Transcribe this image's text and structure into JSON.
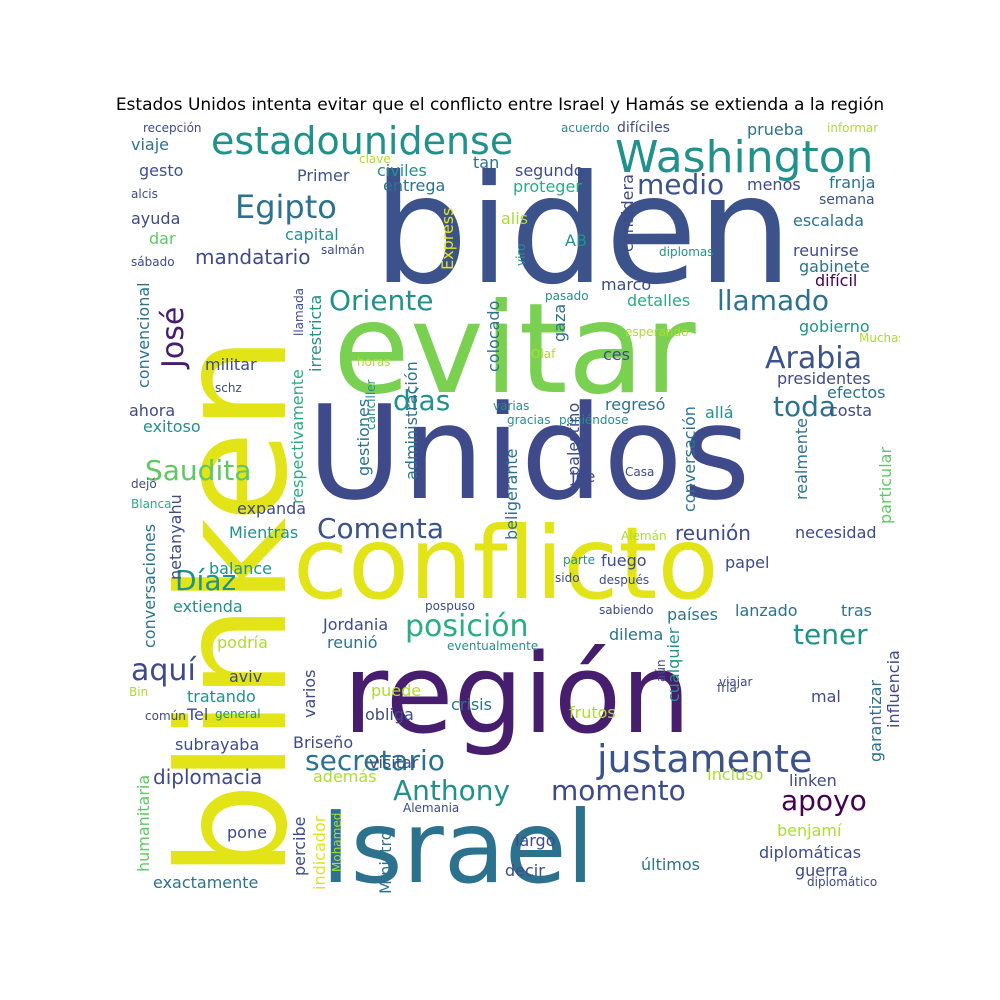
{
  "title": "Estados Unidos intenta evitar que el conflicto entre Israel y Hamás se extienda a la región",
  "palette": [
    "#440154",
    "#472d7b",
    "#3b528b",
    "#2c728e",
    "#21918c",
    "#28ae80",
    "#5ec962",
    "#addc30",
    "#e3e418"
  ],
  "words": [
    {
      "text": "biden",
      "color": "#3b528b"
    },
    {
      "text": "blinken",
      "color": "#e3e418"
    },
    {
      "text": "evitar",
      "color": "#7ad151"
    },
    {
      "text": "Unidos",
      "color": "#3e4a89"
    },
    {
      "text": "conflicto",
      "color": "#e3e418"
    },
    {
      "text": "región",
      "color": "#471d6e"
    },
    {
      "text": "Israel",
      "color": "#2c728e"
    },
    {
      "text": "Washington",
      "color": "#21918c"
    },
    {
      "text": "estadounidense",
      "color": "#21918c"
    },
    {
      "text": "justamente",
      "color": "#3b528b"
    },
    {
      "text": "Egipto",
      "color": "#2c728e"
    },
    {
      "text": "medio",
      "color": "#3b528b"
    },
    {
      "text": "llamado",
      "color": "#2c728e"
    },
    {
      "text": "Oriente",
      "color": "#21918c"
    },
    {
      "text": "José",
      "color": "#471d6e"
    },
    {
      "text": "Arabia",
      "color": "#3b528b"
    },
    {
      "text": "toda",
      "color": "#2c728e"
    },
    {
      "text": "días",
      "color": "#21918c"
    },
    {
      "text": "Saudita",
      "color": "#5ec962"
    },
    {
      "text": "Comenta",
      "color": "#3b528b"
    },
    {
      "text": "Díaz",
      "color": "#21918c"
    },
    {
      "text": "posición",
      "color": "#28ae80"
    },
    {
      "text": "tener",
      "color": "#21918c"
    },
    {
      "text": "aquí",
      "color": "#3e4a89"
    },
    {
      "text": "secretario",
      "color": "#2c728e"
    },
    {
      "text": "Anthony",
      "color": "#21918c"
    },
    {
      "text": "momento",
      "color": "#3e4a89"
    },
    {
      "text": "apoyo",
      "color": "#440154"
    },
    {
      "text": "diplomacia",
      "color": "#3e4a89"
    },
    {
      "text": "mandatario",
      "color": "#3e4a89"
    },
    {
      "text": "reunión",
      "color": "#3e4a89"
    },
    {
      "text": "prueba",
      "color": "#2c728e"
    },
    {
      "text": "recepción",
      "color": "#3e4a89"
    },
    {
      "text": "acuerdo",
      "color": "#21918c"
    },
    {
      "text": "difíciles",
      "color": "#3e4a89"
    },
    {
      "text": "informar",
      "color": "#addc30"
    },
    {
      "text": "viaje",
      "color": "#2c728e"
    },
    {
      "text": "gesto",
      "color": "#3b528b"
    },
    {
      "text": "clave",
      "color": "#addc30"
    },
    {
      "text": "tan",
      "color": "#2c728e"
    },
    {
      "text": "Primer",
      "color": "#3b528b"
    },
    {
      "text": "civiles",
      "color": "#21918c"
    },
    {
      "text": "segundo",
      "color": "#3e4a89"
    },
    {
      "text": "entrega",
      "color": "#2c728e"
    },
    {
      "text": "proteger",
      "color": "#28ae80"
    },
    {
      "text": "menos",
      "color": "#3e4a89"
    },
    {
      "text": "franja",
      "color": "#2c728e"
    },
    {
      "text": "semana",
      "color": "#3b528b"
    },
    {
      "text": "alcis",
      "color": "#3e4a89"
    },
    {
      "text": "ayuda",
      "color": "#3e4a89"
    },
    {
      "text": "capital",
      "color": "#21918c"
    },
    {
      "text": "Express",
      "color": "#e3e418"
    },
    {
      "text": "alis",
      "color": "#addc30"
    },
    {
      "text": "AB",
      "color": "#21918c"
    },
    {
      "text": "considera",
      "color": "#3e4a89"
    },
    {
      "text": "escalada",
      "color": "#2c728e"
    },
    {
      "text": "dar",
      "color": "#5ec962"
    },
    {
      "text": "salmán",
      "color": "#3e4a89"
    },
    {
      "text": "viro",
      "color": "#21918c"
    },
    {
      "text": "diplomas",
      "color": "#21918c"
    },
    {
      "text": "reunirse",
      "color": "#3e4a89"
    },
    {
      "text": "gabinete",
      "color": "#2c728e"
    },
    {
      "text": "sábado",
      "color": "#3e4a89"
    },
    {
      "text": "difícil",
      "color": "#440154"
    },
    {
      "text": "convencional",
      "color": "#2c728e"
    },
    {
      "text": "llamada",
      "color": "#3e4a89"
    },
    {
      "text": "irrestricta",
      "color": "#21918c"
    },
    {
      "text": "colocado",
      "color": "#2c728e"
    },
    {
      "text": "pasado",
      "color": "#21918c"
    },
    {
      "text": "marco",
      "color": "#3e4a89"
    },
    {
      "text": "detalles",
      "color": "#28ae80"
    },
    {
      "text": "gobierno",
      "color": "#21918c"
    },
    {
      "text": "gaza",
      "color": "#2c728e"
    },
    {
      "text": "esperando",
      "color": "#addc30"
    },
    {
      "text": "Muchas",
      "color": "#addc30"
    },
    {
      "text": "militar",
      "color": "#3e4a89"
    },
    {
      "text": "Olaf",
      "color": "#addc30"
    },
    {
      "text": "horas",
      "color": "#addc30"
    },
    {
      "text": "ces",
      "color": "#3e4a89"
    },
    {
      "text": "presidentes",
      "color": "#3e4a89"
    },
    {
      "text": "schz",
      "color": "#3e4a89"
    },
    {
      "text": "ahora",
      "color": "#3e4a89"
    },
    {
      "text": "efectos",
      "color": "#2c728e"
    },
    {
      "text": "costa",
      "color": "#3e4a89"
    },
    {
      "text": "gestiones",
      "color": "#2c728e"
    },
    {
      "text": "canciller",
      "color": "#21918c"
    },
    {
      "text": "varias",
      "color": "#21918c"
    },
    {
      "text": "gracias",
      "color": "#21918c"
    },
    {
      "text": "poniéndose",
      "color": "#21918c"
    },
    {
      "text": "regresó",
      "color": "#2c728e"
    },
    {
      "text": "allá",
      "color": "#21918c"
    },
    {
      "text": "exitoso",
      "color": "#21918c"
    },
    {
      "text": "respectivamente",
      "color": "#28ae80"
    },
    {
      "text": "administración",
      "color": "#2c728e"
    },
    {
      "text": "palestino",
      "color": "#3e4a89"
    },
    {
      "text": "conversación",
      "color": "#2c728e"
    },
    {
      "text": "realmente",
      "color": "#2c728e"
    },
    {
      "text": "particular",
      "color": "#5ec962"
    },
    {
      "text": "Joe",
      "color": "#3e4a89"
    },
    {
      "text": "Casa",
      "color": "#3e4a89"
    },
    {
      "text": "beligerante",
      "color": "#2c728e"
    },
    {
      "text": "dejó",
      "color": "#3e4a89"
    },
    {
      "text": "Blanca",
      "color": "#28ae80"
    },
    {
      "text": "expanda",
      "color": "#3e4a89"
    },
    {
      "text": "netanyahu",
      "color": "#3e4a89"
    },
    {
      "text": "conversaciones",
      "color": "#2c728e"
    },
    {
      "text": "Mientras",
      "color": "#21918c"
    },
    {
      "text": "Alemán",
      "color": "#addc30"
    },
    {
      "text": "necesidad",
      "color": "#3e4a89"
    },
    {
      "text": "balance",
      "color": "#21918c"
    },
    {
      "text": "fuego",
      "color": "#3e4a89"
    },
    {
      "text": "parte",
      "color": "#21918c"
    },
    {
      "text": "papel",
      "color": "#3e4a89"
    },
    {
      "text": "sido",
      "color": "#3e4a89"
    },
    {
      "text": "después",
      "color": "#3e4a89"
    },
    {
      "text": "extienda",
      "color": "#21918c"
    },
    {
      "text": "pospuso",
      "color": "#3e4a89"
    },
    {
      "text": "sabiendo",
      "color": "#3e4a89"
    },
    {
      "text": "países",
      "color": "#2c728e"
    },
    {
      "text": "lanzado",
      "color": "#2c728e"
    },
    {
      "text": "tras",
      "color": "#2c728e"
    },
    {
      "text": "Jordania",
      "color": "#3e4a89"
    },
    {
      "text": "dilema",
      "color": "#2c728e"
    },
    {
      "text": "podría",
      "color": "#addc30"
    },
    {
      "text": "reunió",
      "color": "#2c728e"
    },
    {
      "text": "eventualmente",
      "color": "#21918c"
    },
    {
      "text": "cualquier",
      "color": "#21918c"
    },
    {
      "text": "influencia",
      "color": "#3e4a89"
    },
    {
      "text": "aviv",
      "color": "#3e4a89"
    },
    {
      "text": "varios",
      "color": "#3e4a89"
    },
    {
      "text": "aún",
      "color": "#3e4a89"
    },
    {
      "text": "Bin",
      "color": "#addc30"
    },
    {
      "text": "tratando",
      "color": "#21918c"
    },
    {
      "text": "puede",
      "color": "#addc30"
    },
    {
      "text": "viajar",
      "color": "#3e4a89"
    },
    {
      "text": "fría",
      "color": "#3e4a89"
    },
    {
      "text": "garantizar",
      "color": "#2c728e"
    },
    {
      "text": "crisis",
      "color": "#2c728e"
    },
    {
      "text": "mal",
      "color": "#3e4a89"
    },
    {
      "text": "común",
      "color": "#3e4a89"
    },
    {
      "text": "Tel",
      "color": "#3e4a89"
    },
    {
      "text": "general",
      "color": "#21918c"
    },
    {
      "text": "obliga",
      "color": "#3e4a89"
    },
    {
      "text": "frutos",
      "color": "#addc30"
    },
    {
      "text": "subrayaba",
      "color": "#3e4a89"
    },
    {
      "text": "Briseño",
      "color": "#3e4a89"
    },
    {
      "text": "humanitaria",
      "color": "#5ec962"
    },
    {
      "text": "además",
      "color": "#addc30"
    },
    {
      "text": "visitar",
      "color": "#3e4a89"
    },
    {
      "text": "Incluso",
      "color": "#addc30"
    },
    {
      "text": "linken",
      "color": "#3e4a89"
    },
    {
      "text": "Alemania",
      "color": "#3e4a89"
    },
    {
      "text": "percibe",
      "color": "#3e4a89"
    },
    {
      "text": "indicador",
      "color": "#e3e418"
    },
    {
      "text": "Mohamed",
      "color": "#addc30"
    },
    {
      "text": "Ministro",
      "color": "#2c728e"
    },
    {
      "text": "benjamí",
      "color": "#addc30"
    },
    {
      "text": "pone",
      "color": "#3e4a89"
    },
    {
      "text": "largo",
      "color": "#3e4a89"
    },
    {
      "text": "diplomáticas",
      "color": "#3e4a89"
    },
    {
      "text": "decir",
      "color": "#3e4a89"
    },
    {
      "text": "últimos",
      "color": "#2c728e"
    },
    {
      "text": "guerra",
      "color": "#3e4a89"
    },
    {
      "text": "exactamente",
      "color": "#2c728e"
    },
    {
      "text": "diplomático",
      "color": "#3e4a89"
    }
  ]
}
